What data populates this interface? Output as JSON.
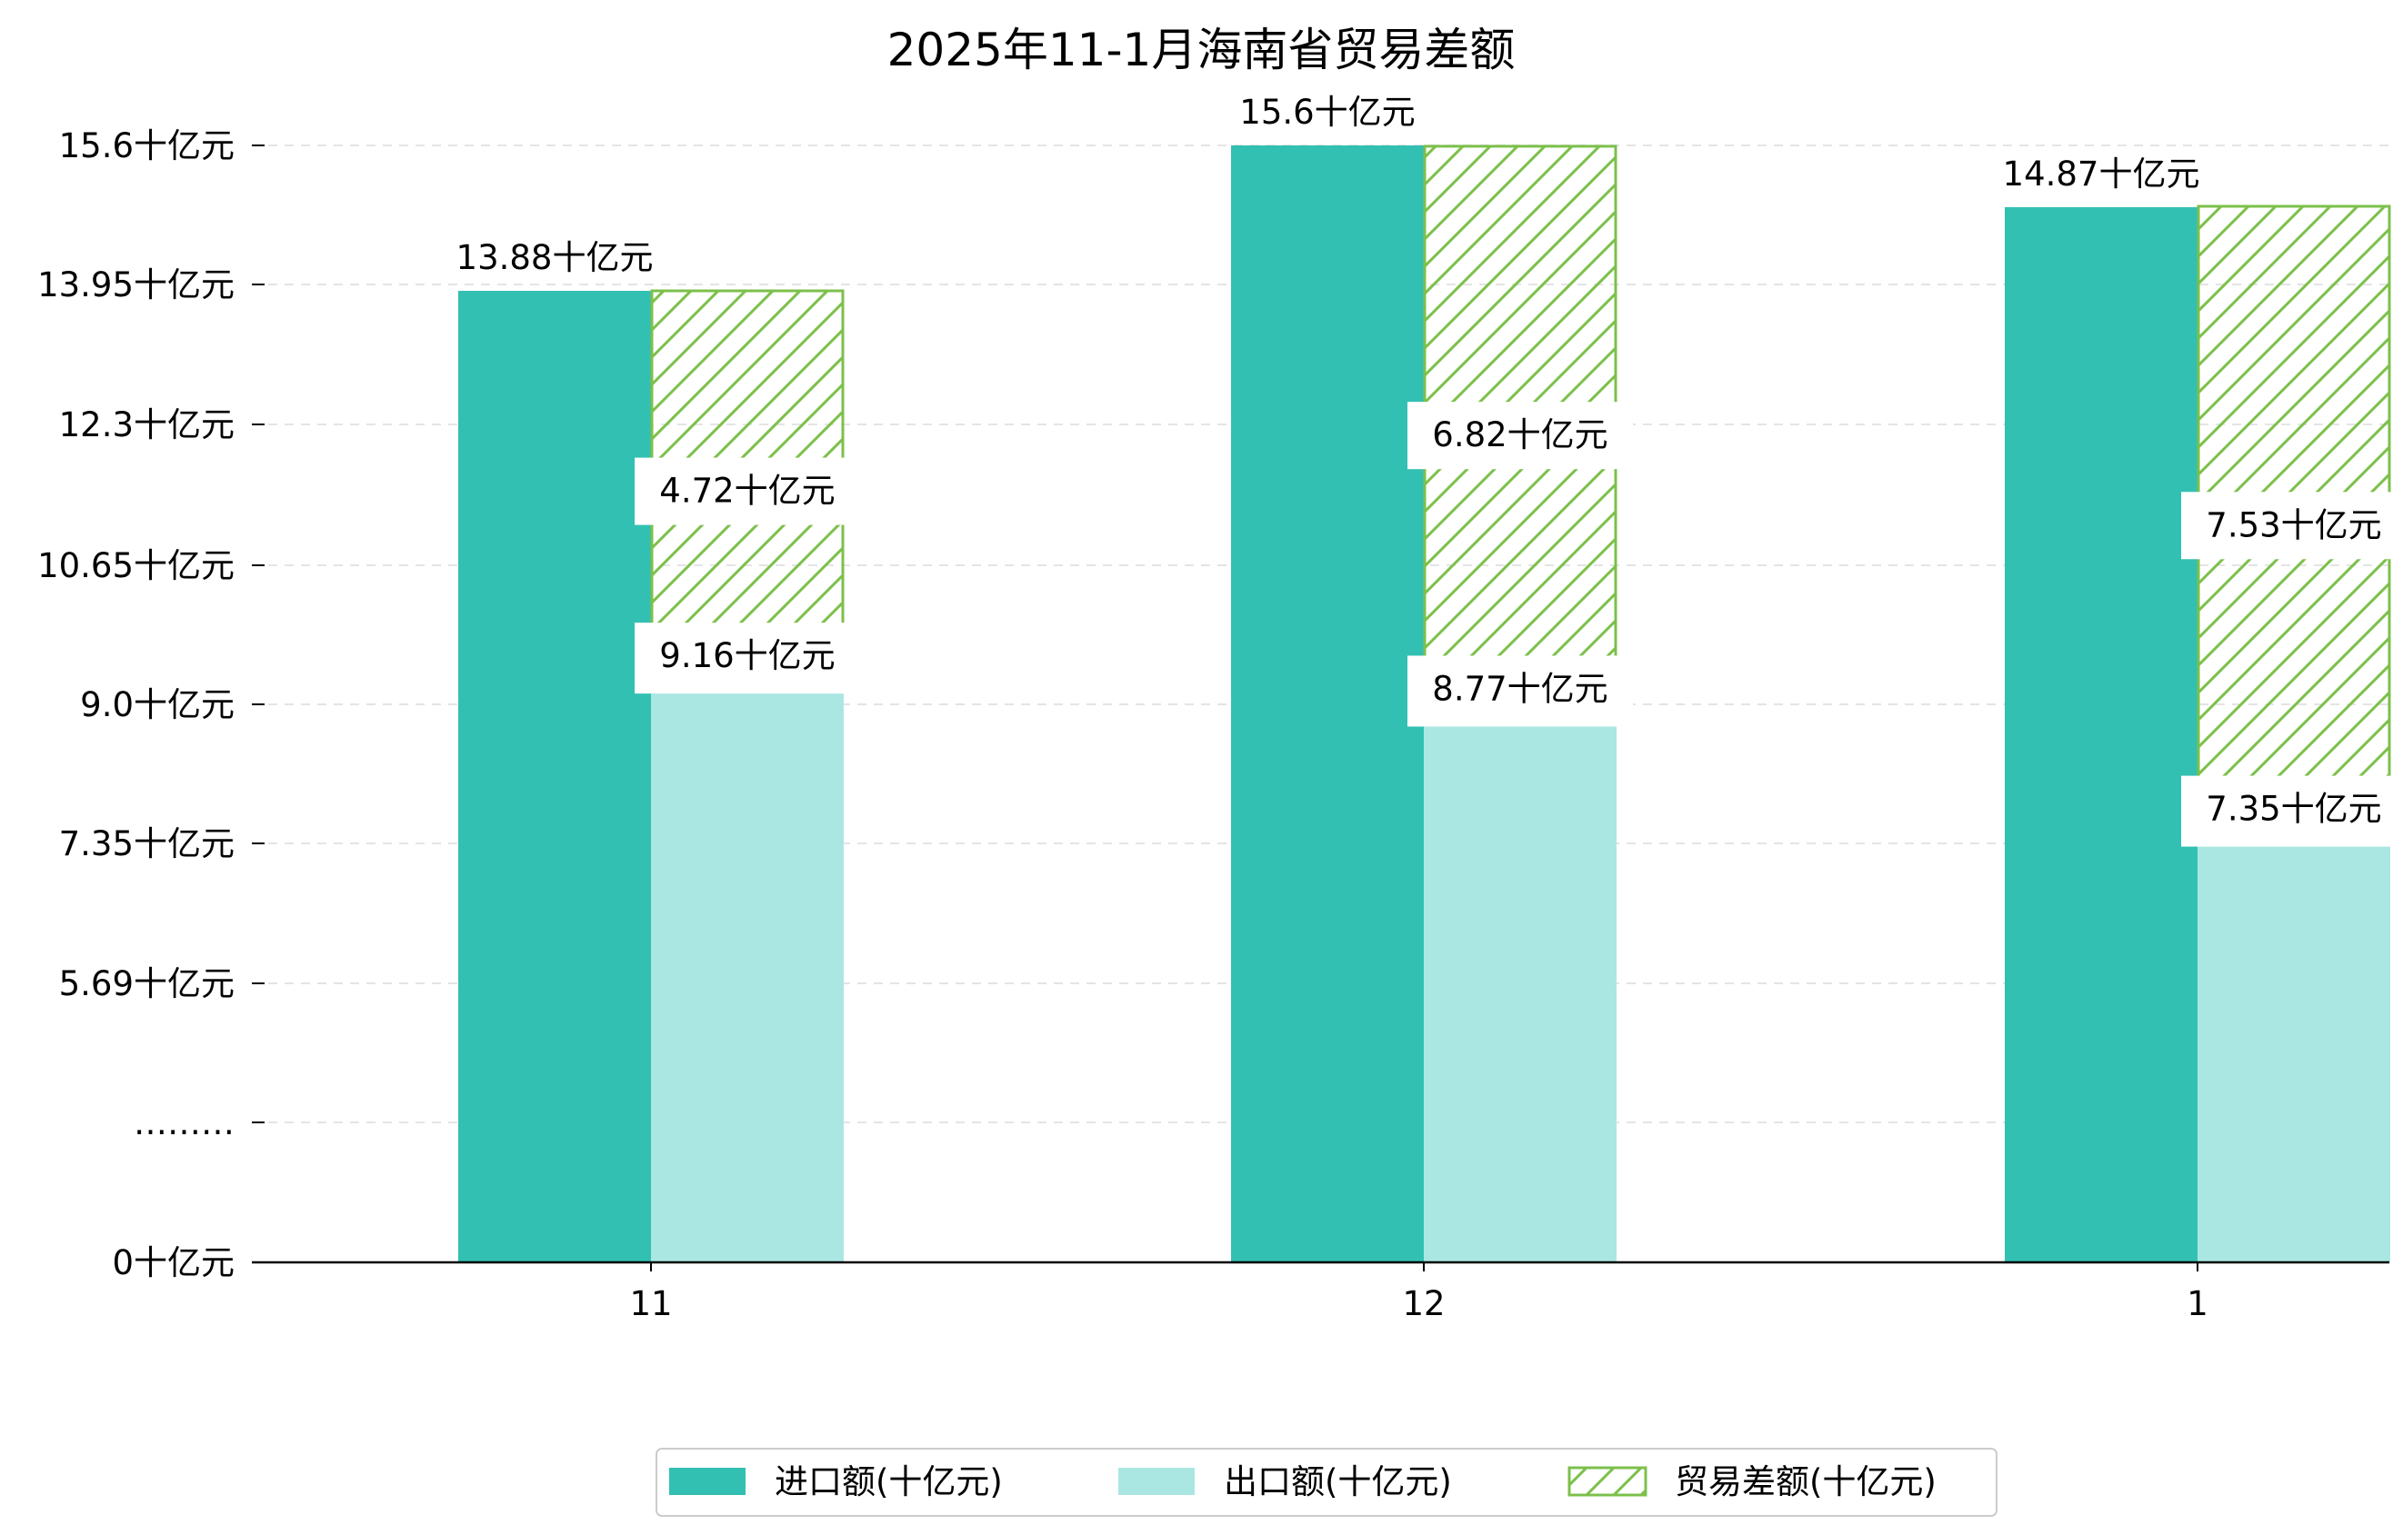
{
  "chart_data": {
    "type": "bar",
    "title": "2025年11-1月海南省贸易差额",
    "categories": [
      "11",
      "12",
      "1"
    ],
    "series": [
      {
        "name": "进口额(十亿元)",
        "values": [
          13.88,
          15.6,
          14.87
        ],
        "color": "#32c0b2"
      },
      {
        "name": "出口额(十亿元)",
        "values": [
          9.16,
          8.77,
          7.35
        ],
        "color": "#abe7e2"
      },
      {
        "name": "贸易差额(十亿元)",
        "values": [
          4.72,
          6.82,
          7.53
        ],
        "color": "#7cc04b",
        "stacked_on": "出口额(十亿元)",
        "hatched": true
      }
    ],
    "value_labels": {
      "import": [
        "13.88十亿元",
        "15.6十亿元",
        "14.87十亿元"
      ],
      "export": [
        "9.16十亿元",
        "8.77十亿元",
        "7.35十亿元"
      ],
      "balance": [
        "4.72十亿元",
        "6.82十亿元",
        "7.53十亿元"
      ]
    },
    "y_ticks": [
      "0十亿元",
      "………",
      "5.69十亿元",
      "7.35十亿元",
      "9.0十亿元",
      "10.65十亿元",
      "12.3十亿元",
      "13.95十亿元",
      "15.6十亿元"
    ],
    "y_axis_break": true,
    "grid": "horizontal dashed",
    "legend_position": "bottom-center",
    "xlabel": "",
    "ylabel": ""
  }
}
